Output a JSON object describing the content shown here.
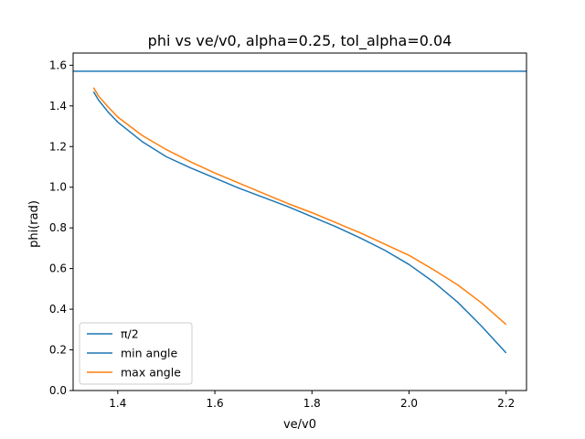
{
  "chart_data": {
    "type": "line",
    "title": "phi vs ve/v0, alpha=0.25, tol_alpha=0.04",
    "xlabel": "ve/v0",
    "ylabel": "phi(rad)",
    "xlim": [
      1.308,
      2.242
    ],
    "ylim": [
      0.0,
      1.66
    ],
    "xticks": [
      1.4,
      1.6,
      1.8,
      2.0,
      2.2
    ],
    "xtick_labels": [
      "1.4",
      "1.6",
      "1.8",
      "2.0",
      "2.2"
    ],
    "yticks": [
      0.0,
      0.2,
      0.4,
      0.6,
      0.8,
      1.0,
      1.2,
      1.4,
      1.6
    ],
    "ytick_labels": [
      "0.0",
      "0.2",
      "0.4",
      "0.6",
      "0.8",
      "1.0",
      "1.2",
      "1.4",
      "1.6"
    ],
    "grid": false,
    "legend_position": "lower-left",
    "series": [
      {
        "name": "π/2",
        "color": "#1f77b4",
        "kind": "hline",
        "y": 1.5708
      },
      {
        "name": "min angle",
        "color": "#1f77b4",
        "x": [
          1.35,
          1.36,
          1.38,
          1.4,
          1.45,
          1.5,
          1.55,
          1.6,
          1.65,
          1.7,
          1.75,
          1.8,
          1.85,
          1.9,
          1.95,
          2.0,
          2.05,
          2.1,
          2.15,
          2.2
        ],
        "y": [
          1.47,
          1.43,
          1.37,
          1.32,
          1.225,
          1.15,
          1.095,
          1.045,
          0.995,
          0.95,
          0.905,
          0.855,
          0.805,
          0.75,
          0.69,
          0.62,
          0.535,
          0.435,
          0.315,
          0.185
        ]
      },
      {
        "name": "max angle",
        "color": "#ff7f0e",
        "x": [
          1.35,
          1.36,
          1.38,
          1.4,
          1.45,
          1.5,
          1.55,
          1.6,
          1.65,
          1.7,
          1.75,
          1.8,
          1.85,
          1.9,
          1.95,
          2.0,
          2.05,
          2.1,
          2.15,
          2.2
        ],
        "y": [
          1.49,
          1.45,
          1.395,
          1.345,
          1.255,
          1.185,
          1.125,
          1.07,
          1.02,
          0.97,
          0.92,
          0.875,
          0.825,
          0.775,
          0.72,
          0.665,
          0.595,
          0.52,
          0.43,
          0.325
        ]
      }
    ]
  }
}
